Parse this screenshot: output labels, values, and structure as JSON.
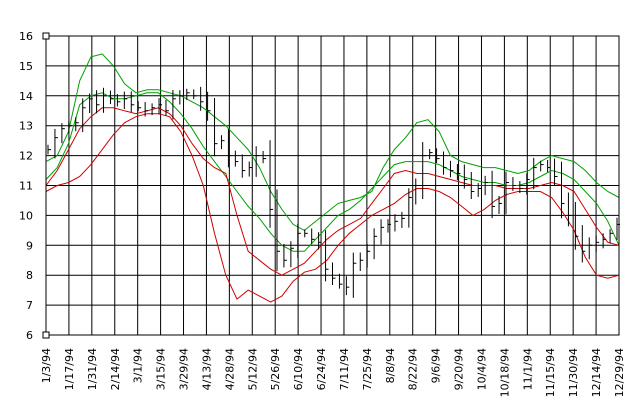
{
  "chart_data": {
    "type": "line",
    "title": "",
    "xlabel": "",
    "ylabel": "",
    "ylim": [
      6,
      16
    ],
    "yticks": [
      "16",
      "15",
      "14",
      "13",
      "12",
      "11",
      "10",
      "9",
      "8",
      "7",
      "6"
    ],
    "xticks": [
      "1/3/94",
      "1/17/94",
      "1/31/94",
      "2/14/94",
      "3/1/94",
      "3/15/94",
      "3/29/94",
      "4/13/94",
      "4/28/94",
      "5/12/94",
      "5/26/94",
      "6/10/94",
      "6/24/94",
      "7/11/94",
      "7/25/94",
      "8/8/94",
      "8/22/94",
      "9/6/94",
      "9/20/94",
      "10/4/94",
      "10/18/94",
      "11/1/94",
      "11/15/94",
      "11/30/94",
      "12/14/94",
      "12/29/94"
    ],
    "grid": true,
    "colors": {
      "price": "#000000",
      "green_band": "#00a000",
      "red_band": "#d00000",
      "grid": "#000000"
    },
    "series": [
      {
        "name": "price-bars",
        "style": "high-low-close bars",
        "values": [
          12.2,
          12.6,
          12.9,
          13.0,
          13.1,
          13.6,
          13.9,
          13.7,
          14.0,
          13.9,
          13.8,
          13.9,
          13.7,
          13.6,
          13.5,
          13.6,
          13.7,
          13.5,
          13.9,
          14.0,
          14.1,
          14.0,
          13.8,
          13.5,
          12.4,
          12.5,
          12.0,
          11.8,
          11.5,
          11.6,
          12.0,
          11.9,
          10.2,
          8.8,
          8.5,
          8.9,
          9.4,
          9.4,
          9.2,
          9.1,
          8.2,
          7.9,
          7.7,
          7.6,
          8.4,
          8.5,
          8.8,
          9.3,
          9.6,
          9.7,
          9.8,
          9.9,
          10.6,
          11.0,
          12.0,
          12.1,
          11.9,
          11.6,
          11.5,
          11.4,
          11.2,
          10.8,
          10.9,
          11.1,
          10.3,
          10.4,
          11.1,
          11.0,
          10.9,
          11.2,
          11.6,
          11.7,
          11.6,
          11.3,
          10.4,
          10.0,
          9.3,
          8.8,
          9.0,
          9.1,
          9.2,
          9.4,
          9.7
        ],
        "range_high": 14.6,
        "range_low": 7.0
      },
      {
        "name": "upper-green-band",
        "values": [
          11.8,
          12.0,
          12.8,
          14.5,
          15.3,
          15.4,
          15.0,
          14.4,
          14.1,
          14.2,
          14.2,
          14.1,
          14.0,
          13.8,
          13.6,
          13.3,
          13.0,
          12.6,
          12.2,
          11.6,
          10.8,
          10.2,
          9.7,
          9.5,
          9.8,
          10.1,
          10.4,
          10.5,
          10.6,
          10.8,
          11.6,
          12.2,
          12.6,
          13.1,
          13.2,
          12.8,
          12.0,
          11.8,
          11.7,
          11.6,
          11.6,
          11.5,
          11.4,
          11.5,
          11.8,
          12.0,
          11.9,
          11.8,
          11.5,
          11.1,
          10.8,
          10.6
        ]
      },
      {
        "name": "middle-green-band",
        "values": [
          11.2,
          11.6,
          12.4,
          13.7,
          14.0,
          14.1,
          13.9,
          13.9,
          14.0,
          14.1,
          14.1,
          13.8,
          13.4,
          12.9,
          12.3,
          11.8,
          11.3,
          10.8,
          10.3,
          9.9,
          9.4,
          9.0,
          8.8,
          8.8,
          9.2,
          9.6,
          10.0,
          10.2,
          10.5,
          10.9,
          11.3,
          11.7,
          11.8,
          11.8,
          11.8,
          11.7,
          11.5,
          11.3,
          11.2,
          11.1,
          11.1,
          11.0,
          11.0,
          11.1,
          11.3,
          11.5,
          11.4,
          11.2,
          10.8,
          10.4,
          9.8,
          9.0
        ]
      },
      {
        "name": "upper-red-band",
        "values": [
          11.0,
          11.5,
          12.2,
          12.9,
          13.3,
          13.6,
          13.6,
          13.5,
          13.4,
          13.5,
          13.6,
          13.4,
          13.0,
          12.4,
          11.9,
          11.6,
          11.4,
          10.0,
          8.8,
          8.5,
          8.2,
          8.0,
          8.2,
          8.4,
          8.8,
          9.2,
          9.5,
          9.7,
          9.9,
          10.4,
          10.9,
          11.4,
          11.5,
          11.4,
          11.4,
          11.3,
          11.2,
          11.1,
          11.0,
          11.0,
          11.0,
          10.9,
          10.9,
          10.9,
          11.0,
          11.1,
          11.0,
          10.8,
          10.2,
          9.6,
          9.1,
          9.0
        ]
      },
      {
        "name": "lower-red-band",
        "values": [
          10.8,
          11.0,
          11.1,
          11.3,
          11.7,
          12.2,
          12.7,
          13.1,
          13.3,
          13.4,
          13.4,
          13.3,
          12.8,
          12.0,
          11.0,
          9.4,
          8.0,
          7.2,
          7.5,
          7.3,
          7.1,
          7.3,
          7.8,
          8.1,
          8.2,
          8.5,
          9.0,
          9.4,
          9.7,
          10.0,
          10.2,
          10.4,
          10.7,
          10.9,
          10.9,
          10.8,
          10.6,
          10.3,
          10.0,
          10.2,
          10.5,
          10.7,
          10.8,
          10.8,
          10.8,
          10.6,
          10.1,
          9.5,
          8.6,
          8.0,
          7.9,
          8.0
        ]
      }
    ]
  }
}
